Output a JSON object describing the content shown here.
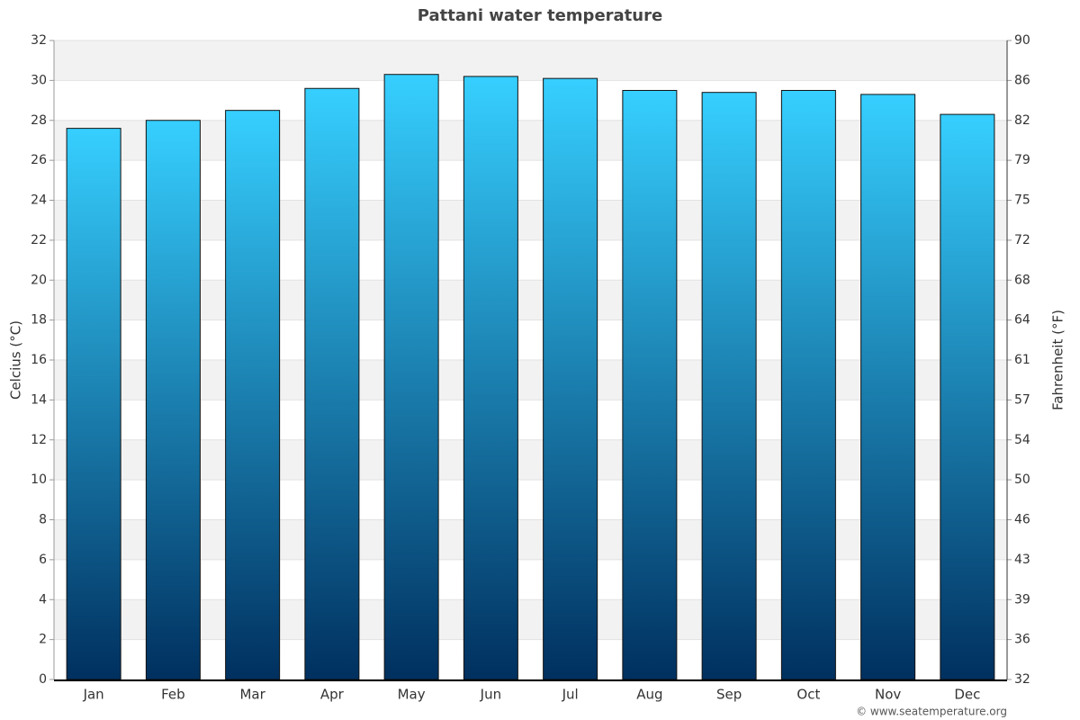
{
  "chart_data": {
    "type": "bar",
    "title": "Pattani water temperature",
    "y_label": "Celcius (°C)",
    "y2_label": "Fahrenheit (°F)",
    "credit": "© www.seatemperature.org",
    "categories": [
      "Jan",
      "Feb",
      "Mar",
      "Apr",
      "May",
      "Jun",
      "Jul",
      "Aug",
      "Sep",
      "Oct",
      "Nov",
      "Dec"
    ],
    "values": [
      27.6,
      28.0,
      28.5,
      29.6,
      30.3,
      30.2,
      30.1,
      29.5,
      29.4,
      29.5,
      29.3,
      28.3
    ],
    "color": [
      "#36cfff",
      "#00305f"
    ],
    "ylim": [
      0,
      32
    ],
    "yticks": [
      0,
      2,
      4,
      6,
      8,
      10,
      12,
      14,
      16,
      18,
      20,
      22,
      24,
      26,
      28,
      30,
      32
    ],
    "y2lim": [
      32,
      89.6
    ],
    "y2ticks": [
      32,
      {
        "value": 35.6,
        "label": "36"
      },
      {
        "value": 39.2,
        "label": "39"
      },
      {
        "value": 42.8,
        "label": "43"
      },
      {
        "value": 46.4,
        "label": "46"
      },
      50,
      {
        "value": 53.6,
        "label": "54"
      },
      {
        "value": 57.2,
        "label": "57"
      },
      {
        "value": 60.8,
        "label": "61"
      },
      {
        "value": 64.4,
        "label": "64"
      },
      68,
      {
        "value": 71.6,
        "label": "72"
      },
      {
        "value": 75.2,
        "label": "75"
      },
      {
        "value": 78.8,
        "label": "79"
      },
      {
        "value": 82.4,
        "label": "82"
      },
      86,
      {
        "value": 89.6,
        "label": "90"
      }
    ],
    "grid": true
  }
}
